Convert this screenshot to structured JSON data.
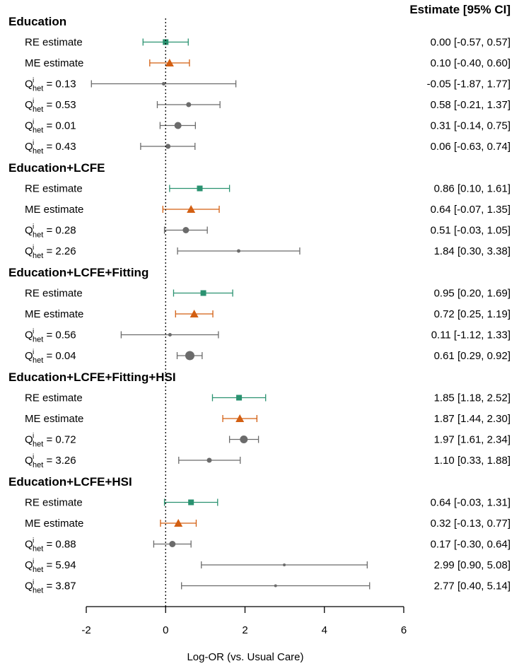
{
  "chart_data": {
    "type": "forest",
    "column_header": "Estimate [95% CI]",
    "xlabel": "Log-OR (vs. Usual Care)",
    "xlim": [
      -2,
      6
    ],
    "xticks": [
      "-2",
      "0",
      "2",
      "4",
      "6"
    ],
    "reference_line_x": 0,
    "colors": {
      "RE": "#2a9270",
      "ME": "#d35f12",
      "study": "#6b6b6b"
    },
    "groups": [
      {
        "title": "Education",
        "rows": [
          {
            "kind": "RE",
            "label": "RE estimate",
            "est": 0.0,
            "lo": -0.57,
            "hi": 0.57,
            "text": "0.00 [-0.57, 0.57]"
          },
          {
            "kind": "ME",
            "label": "ME estimate",
            "est": 0.1,
            "lo": -0.4,
            "hi": 0.6,
            "text": "0.10 [-0.40, 0.60]"
          },
          {
            "kind": "study",
            "q_main": "Q",
            "q_sup": "i",
            "q_sub": "het",
            "q_val": " = 0.13",
            "est": -0.05,
            "lo": -1.87,
            "hi": 1.77,
            "size": 2.5,
            "text": "-0.05 [-1.87, 1.77]"
          },
          {
            "kind": "study",
            "q_main": "Q",
            "q_sup": "i",
            "q_sub": "het",
            "q_val": " = 0.53",
            "est": 0.58,
            "lo": -0.21,
            "hi": 1.37,
            "size": 3.5,
            "text": "0.58 [-0.21, 1.37]"
          },
          {
            "kind": "study",
            "q_main": "Q",
            "q_sup": "i",
            "q_sub": "het",
            "q_val": " = 0.01",
            "est": 0.31,
            "lo": -0.14,
            "hi": 0.75,
            "size": 5,
            "text": "0.31 [-0.14, 0.75]"
          },
          {
            "kind": "study",
            "q_main": "Q",
            "q_sup": "i",
            "q_sub": "het",
            "q_val": " = 0.43",
            "est": 0.06,
            "lo": -0.63,
            "hi": 0.74,
            "size": 3.5,
            "text": "0.06 [-0.63, 0.74]"
          }
        ]
      },
      {
        "title": "Education+LCFE",
        "rows": [
          {
            "kind": "RE",
            "label": "RE estimate",
            "est": 0.86,
            "lo": 0.1,
            "hi": 1.61,
            "text": "0.86 [0.10, 1.61]"
          },
          {
            "kind": "ME",
            "label": "ME estimate",
            "est": 0.64,
            "lo": -0.07,
            "hi": 1.35,
            "text": "0.64 [-0.07, 1.35]"
          },
          {
            "kind": "study",
            "q_main": "Q",
            "q_sup": "i",
            "q_sub": "het",
            "q_val": " = 0.28",
            "est": 0.51,
            "lo": -0.03,
            "hi": 1.05,
            "size": 4.5,
            "text": "0.51 [-0.03, 1.05]"
          },
          {
            "kind": "study",
            "q_main": "Q",
            "q_sup": "i",
            "q_sub": "het",
            "q_val": " = 2.26",
            "est": 1.84,
            "lo": 0.3,
            "hi": 3.38,
            "size": 2.5,
            "text": "1.84 [0.30, 3.38]"
          }
        ]
      },
      {
        "title": "Education+LCFE+Fitting",
        "rows": [
          {
            "kind": "RE",
            "label": "RE estimate",
            "est": 0.95,
            "lo": 0.2,
            "hi": 1.69,
            "text": "0.95 [0.20, 1.69]"
          },
          {
            "kind": "ME",
            "label": "ME estimate",
            "est": 0.72,
            "lo": 0.25,
            "hi": 1.19,
            "text": "0.72 [0.25, 1.19]"
          },
          {
            "kind": "study",
            "q_main": "Q",
            "q_sup": "i",
            "q_sub": "het",
            "q_val": " = 0.56",
            "est": 0.11,
            "lo": -1.12,
            "hi": 1.33,
            "size": 2.5,
            "text": "0.11 [-1.12, 1.33]"
          },
          {
            "kind": "study",
            "q_main": "Q",
            "q_sup": "i",
            "q_sub": "het",
            "q_val": " = 0.04",
            "est": 0.61,
            "lo": 0.29,
            "hi": 0.92,
            "size": 6.5,
            "text": "0.61 [0.29, 0.92]"
          }
        ]
      },
      {
        "title": "Education+LCFE+Fitting+HSI",
        "rows": [
          {
            "kind": "RE",
            "label": "RE estimate",
            "est": 1.85,
            "lo": 1.18,
            "hi": 2.52,
            "text": "1.85 [1.18, 2.52]"
          },
          {
            "kind": "ME",
            "label": "ME estimate",
            "est": 1.87,
            "lo": 1.44,
            "hi": 2.3,
            "text": "1.87 [1.44, 2.30]"
          },
          {
            "kind": "study",
            "q_main": "Q",
            "q_sup": "i",
            "q_sub": "het",
            "q_val": " = 0.72",
            "est": 1.97,
            "lo": 1.61,
            "hi": 2.34,
            "size": 5.5,
            "text": "1.97 [1.61, 2.34]"
          },
          {
            "kind": "study",
            "q_main": "Q",
            "q_sup": "i",
            "q_sub": "het",
            "q_val": " = 3.26",
            "est": 1.1,
            "lo": 0.33,
            "hi": 1.88,
            "size": 3.5,
            "text": "1.10 [0.33, 1.88]"
          }
        ]
      },
      {
        "title": "Education+LCFE+HSI",
        "rows": [
          {
            "kind": "RE",
            "label": "RE estimate",
            "est": 0.64,
            "lo": -0.03,
            "hi": 1.31,
            "text": "0.64 [-0.03, 1.31]"
          },
          {
            "kind": "ME",
            "label": "ME estimate",
            "est": 0.32,
            "lo": -0.13,
            "hi": 0.77,
            "text": "0.32 [-0.13, 0.77]"
          },
          {
            "kind": "study",
            "q_main": "Q",
            "q_sup": "i",
            "q_sub": "het",
            "q_val": " = 0.88",
            "est": 0.17,
            "lo": -0.3,
            "hi": 0.64,
            "size": 4.5,
            "text": "0.17 [-0.30, 0.64]"
          },
          {
            "kind": "study",
            "q_main": "Q",
            "q_sup": "i",
            "q_sub": "het",
            "q_val": " = 5.94",
            "est": 2.99,
            "lo": 0.9,
            "hi": 5.08,
            "size": 2,
            "text": "2.99 [0.90, 5.08]"
          },
          {
            "kind": "study",
            "q_main": "Q",
            "q_sup": "i",
            "q_sub": "het",
            "q_val": " = 3.87",
            "est": 2.77,
            "lo": 0.4,
            "hi": 5.14,
            "size": 2,
            "text": "2.77 [0.40, 5.14]"
          }
        ]
      }
    ]
  }
}
